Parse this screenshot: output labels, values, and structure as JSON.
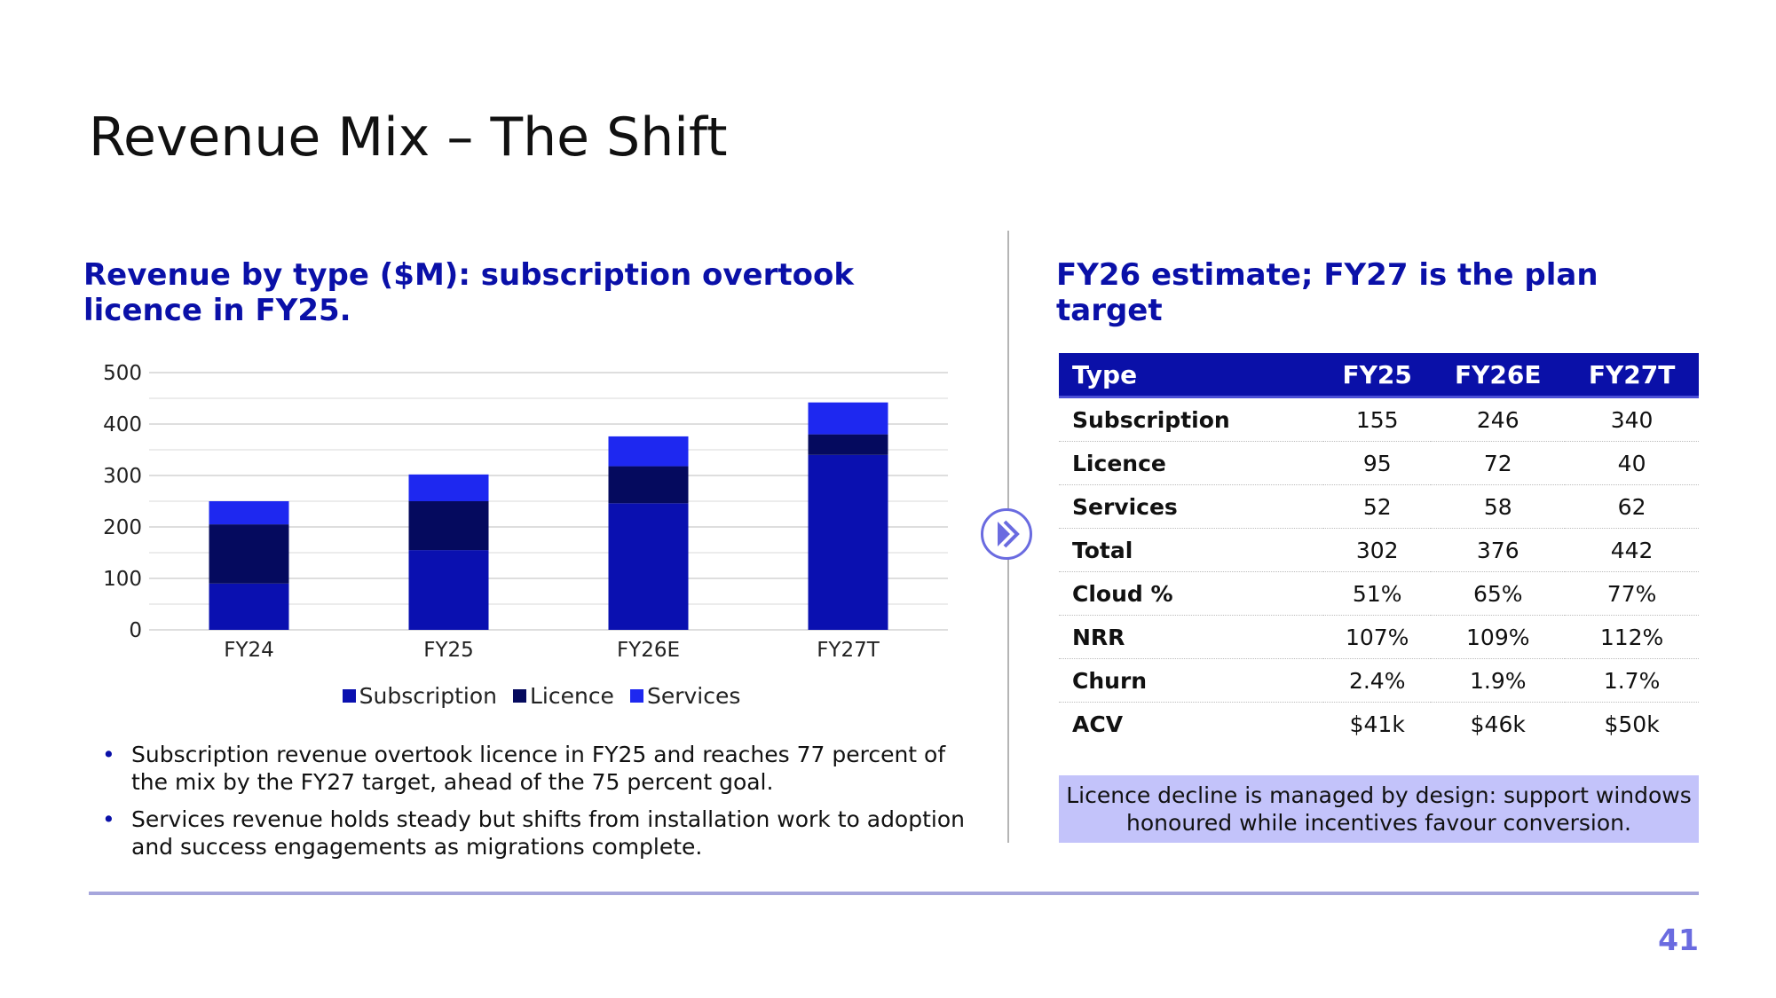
{
  "slide": {
    "title": "Revenue Mix – The Shift",
    "left_heading": "Revenue by type ($M): subscription overtook licence in FY25.",
    "right_heading": "FY26 estimate; FY27 is the plan target",
    "bullets": [
      "Subscription revenue overtook licence in FY25 and reaches 77 percent of the mix by the FY27 target, ahead of the 75 percent goal.",
      "Services revenue holds steady but shifts from installation work to adoption and success engagements as migrations complete."
    ],
    "bullet_glyph": "•",
    "callout": "Licence decline is managed by design: support windows honoured while incentives favour conversion.",
    "page_number": "41",
    "nav_icon": "double-chevron-right-icon"
  },
  "legend": [
    {
      "label": "Subscription",
      "color": "#0a10b0"
    },
    {
      "label": "Licence",
      "color": "#050a5e"
    },
    {
      "label": "Services",
      "color": "#1e28f0"
    }
  ],
  "chart_data": {
    "type": "bar",
    "stacked": true,
    "categories": [
      "FY24",
      "FY25",
      "FY26E",
      "FY27T"
    ],
    "series": [
      {
        "name": "Subscription",
        "values": [
          90,
          155,
          246,
          340
        ],
        "color": "#0a10b0"
      },
      {
        "name": "Licence",
        "values": [
          115,
          95,
          72,
          40
        ],
        "color": "#050a5e"
      },
      {
        "name": "Services",
        "values": [
          45,
          52,
          58,
          62
        ],
        "color": "#1e28f0"
      }
    ],
    "ylim": [
      0,
      500
    ],
    "yticks": [
      0,
      100,
      200,
      300,
      400,
      500
    ],
    "grid": true,
    "legend_position": "bottom",
    "title": "",
    "xlabel": "",
    "ylabel": ""
  },
  "table": {
    "headers": [
      "Type",
      "FY25",
      "FY26E",
      "FY27T"
    ],
    "rows": [
      {
        "label": "Subscription",
        "values": [
          "155",
          "246",
          "340"
        ]
      },
      {
        "label": "Licence",
        "values": [
          "95",
          "72",
          "40"
        ]
      },
      {
        "label": "Services",
        "values": [
          "52",
          "58",
          "62"
        ]
      },
      {
        "label": "Total",
        "values": [
          "302",
          "376",
          "442"
        ]
      },
      {
        "label": "Cloud %",
        "values": [
          "51%",
          "65%",
          "77%"
        ]
      },
      {
        "label": "NRR",
        "values": [
          "107%",
          "109%",
          "112%"
        ]
      },
      {
        "label": "Churn",
        "values": [
          "2.4%",
          "1.9%",
          "1.7%"
        ]
      },
      {
        "label": "ACV",
        "values": [
          "$41k",
          "$46k",
          "$50k"
        ]
      }
    ]
  },
  "colors": {
    "accent": "#0a10a8",
    "callout_bg": "#c3c3fa",
    "page_number": "#6a6be0"
  }
}
